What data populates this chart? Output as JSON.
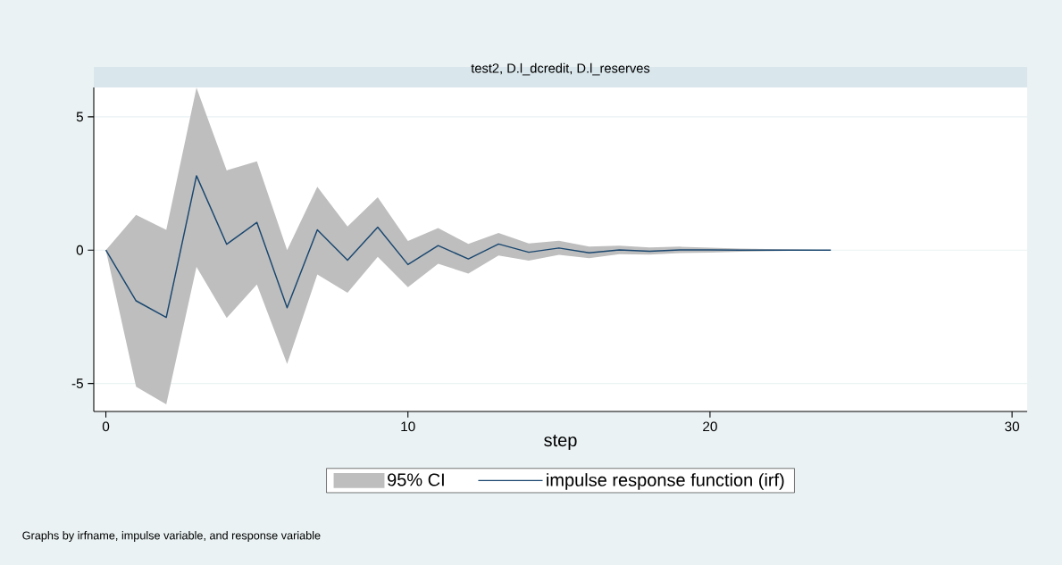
{
  "chart_data": {
    "type": "line",
    "title": "test2, D.l_dcredit, D.l_reserves",
    "xlabel": "step",
    "x": [
      0,
      1,
      2,
      3,
      4,
      5,
      6,
      7,
      8,
      9,
      10,
      11,
      12,
      13,
      14,
      15,
      16,
      17,
      18,
      19,
      20,
      21,
      22,
      23,
      24
    ],
    "series": [
      {
        "name": "impulse response function (irf)",
        "color": "#1a476f",
        "values": [
          0,
          -1.9,
          -2.52,
          2.79,
          0.22,
          1.04,
          -2.16,
          0.76,
          -0.38,
          0.86,
          -0.54,
          0.17,
          -0.33,
          0.23,
          -0.08,
          0.08,
          -0.1,
          0.01,
          -0.04,
          0.01,
          0.01,
          0,
          0,
          0,
          0
        ],
        "lower": [
          0,
          -5.12,
          -5.78,
          -0.63,
          -2.54,
          -1.29,
          -4.27,
          -0.91,
          -1.6,
          -0.25,
          -1.39,
          -0.51,
          -0.88,
          -0.2,
          -0.39,
          -0.18,
          -0.3,
          -0.15,
          -0.17,
          -0.11,
          -0.09,
          -0.06,
          -0.04,
          -0.02,
          0
        ],
        "upper": [
          0,
          1.32,
          0.76,
          6.09,
          2.99,
          3.33,
          0,
          2.38,
          0.89,
          1.98,
          0.34,
          0.83,
          0.23,
          0.64,
          0.25,
          0.35,
          0.13,
          0.17,
          0.1,
          0.13,
          0.09,
          0.06,
          0.04,
          0.02,
          0
        ]
      }
    ],
    "xlim": [
      -0.4,
      30.5
    ],
    "ylim": [
      -6.05,
      6.1
    ],
    "xticks": [
      0,
      10,
      20,
      30
    ],
    "yticks": [
      -5,
      0,
      5
    ],
    "grid": "y",
    "legend": "bottom",
    "marker": "none",
    "line_style": "solid",
    "annotations": [
      "95% CI",
      "Graphs by irfname, impulse variable, and response variable"
    ]
  }
}
